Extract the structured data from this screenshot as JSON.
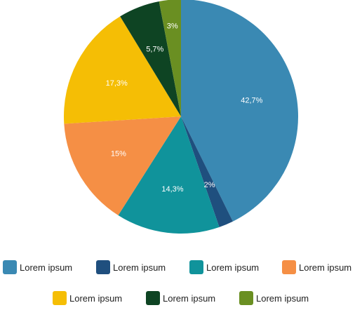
{
  "chart_data": {
    "type": "pie",
    "slices": [
      {
        "label": "Lorem ipsum",
        "value": 42.7,
        "display": "42,7%",
        "color": "#3A89B3"
      },
      {
        "label": "Lorem ipsum",
        "value": 2.0,
        "display": "2%",
        "color": "#1F4F7E"
      },
      {
        "label": "Lorem ipsum",
        "value": 14.3,
        "display": "14,3%",
        "color": "#10939B"
      },
      {
        "label": "Lorem ipsum",
        "value": 15.0,
        "display": "15%",
        "color": "#F58F45"
      },
      {
        "label": "Lorem ipsum",
        "value": 17.3,
        "display": "17,3%",
        "color": "#F5BE05"
      },
      {
        "label": "Lorem ipsum",
        "value": 5.7,
        "display": "5,7%",
        "color": "#0E4423"
      },
      {
        "label": "Lorem ipsum",
        "value": 3.0,
        "display": "3%",
        "color": "#6A8F22"
      }
    ],
    "legend_placement": "bottom"
  }
}
